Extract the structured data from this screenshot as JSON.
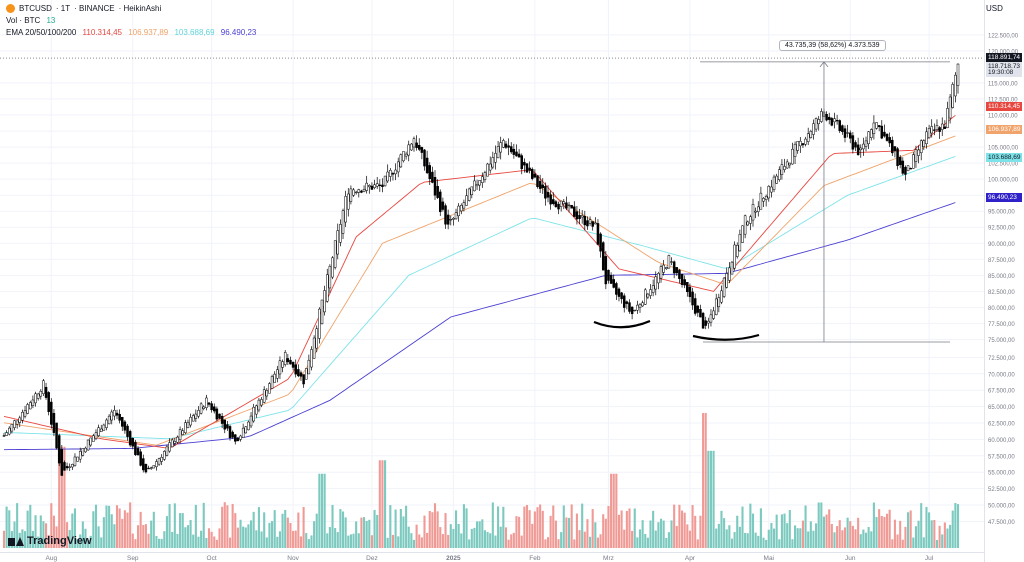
{
  "header": {
    "symbol": "BTCUSD",
    "timeframe": "1T",
    "exchange": "BINANCE",
    "chart_style": "HeikinAshi",
    "volume_label": "Vol · BTC",
    "volume_value": "13",
    "ema_label": "EMA 20/50/100/200",
    "ema_values": [
      "110.314,45",
      "106.937,89",
      "103.688,69",
      "96.490,23"
    ]
  },
  "currency": "USD",
  "colors": {
    "up": "#000000",
    "down": "#000000",
    "vol_up": "#7cc9bf",
    "vol_down": "#f09a96",
    "ema20": "#e8473f",
    "ema50": "#f0a36a",
    "ema100": "#7de3e9",
    "ema200": "#4b3fd1",
    "grid": "#f0f3fa"
  },
  "measurement": {
    "label": "43.735,39 (58,62%) 4.373.539",
    "from_price": 74600,
    "to_price": 118300,
    "at_date": "2025-05-22"
  },
  "price_tags": {
    "last": "118.891,74",
    "high": "118.718,73",
    "countdown": "19:30:08",
    "ema20": "110.314,45",
    "ema50": "106.937,89",
    "ema100": "103.688,69",
    "ema200": "96.490,23"
  },
  "branding": "TradingView",
  "chart_data": {
    "type": "candlestick",
    "title": "BTCUSD · 1T · BINANCE · HeikinAshi",
    "y_axis_ticks": [
      "122.500,00",
      "120.000,00",
      "115.000,00",
      "112.500,00",
      "110.000,00",
      "107.500,00",
      "105.000,00",
      "102.500,00",
      "100.000,00",
      "97.500,00",
      "95.000,00",
      "92.500,00",
      "90.000,00",
      "87.500,00",
      "85.000,00",
      "82.500,00",
      "80.000,00",
      "77.500,00",
      "75.000,00",
      "72.500,00",
      "70.000,00",
      "67.500,00",
      "65.000,00",
      "62.500,00",
      "60.000,00",
      "57.500,00",
      "55.000,00",
      "52.500,00",
      "50.000,00",
      "47.500,00"
    ],
    "x_axis_ticks": [
      "Aug",
      "Sep",
      "Oct",
      "Nov",
      "Dez",
      "2025",
      "Feb",
      "Mrz",
      "Apr",
      "Mai",
      "Jun",
      "Jul"
    ],
    "x_range": [
      "2024-07-14",
      "2025-07-12"
    ],
    "ylim": [
      45000,
      125000
    ],
    "close_keypoints": [
      [
        "2024-07-14",
        60000
      ],
      [
        "2024-07-29",
        68000
      ],
      [
        "2024-08-05",
        54000
      ],
      [
        "2024-08-25",
        64000
      ],
      [
        "2024-09-06",
        54000
      ],
      [
        "2024-09-29",
        65500
      ],
      [
        "2024-10-10",
        59000
      ],
      [
        "2024-10-29",
        72500
      ],
      [
        "2024-11-05",
        68500
      ],
      [
        "2024-11-22",
        98500
      ],
      [
        "2024-12-05",
        99000
      ],
      [
        "2024-12-17",
        106500
      ],
      [
        "2024-12-30",
        92500
      ],
      [
        "2025-01-20",
        106000
      ],
      [
        "2025-02-05",
        97500
      ],
      [
        "2025-02-24",
        92500
      ],
      [
        "2025-02-28",
        84000
      ],
      [
        "2025-03-10",
        79000
      ],
      [
        "2025-03-24",
        87500
      ],
      [
        "2025-04-07",
        76500
      ],
      [
        "2025-04-22",
        93500
      ],
      [
        "2025-05-10",
        104000
      ],
      [
        "2025-05-22",
        110500
      ],
      [
        "2025-06-05",
        104000
      ],
      [
        "2025-06-10",
        109500
      ],
      [
        "2025-06-22",
        100500
      ],
      [
        "2025-06-30",
        107000
      ],
      [
        "2025-07-07",
        108500
      ],
      [
        "2025-07-12",
        118000
      ]
    ],
    "ema200_keypoints": [
      [
        "2024-07-14",
        57800
      ],
      [
        "2024-09-01",
        58000
      ],
      [
        "2024-10-15",
        59800
      ],
      [
        "2024-11-15",
        65500
      ],
      [
        "2024-12-31",
        78500
      ],
      [
        "2025-02-28",
        85000
      ],
      [
        "2025-04-15",
        85300
      ],
      [
        "2025-05-31",
        90500
      ],
      [
        "2025-07-12",
        96500
      ]
    ],
    "ema100_keypoints": [
      [
        "2024-07-14",
        60500
      ],
      [
        "2024-09-15",
        59500
      ],
      [
        "2024-10-31",
        64000
      ],
      [
        "2024-12-15",
        85000
      ],
      [
        "2025-01-31",
        94000
      ],
      [
        "2025-03-15",
        89500
      ],
      [
        "2025-04-15",
        86000
      ],
      [
        "2025-05-31",
        97500
      ],
      [
        "2025-07-12",
        103700
      ]
    ],
    "ema50_keypoints": [
      [
        "2024-07-14",
        62000
      ],
      [
        "2024-09-10",
        58500
      ],
      [
        "2024-10-31",
        66500
      ],
      [
        "2024-12-05",
        90000
      ],
      [
        "2025-01-31",
        99500
      ],
      [
        "2025-03-20",
        87000
      ],
      [
        "2025-04-15",
        83500
      ],
      [
        "2025-05-22",
        99000
      ],
      [
        "2025-07-12",
        106900
      ]
    ],
    "ema20_keypoints": [
      [
        "2024-07-14",
        63000
      ],
      [
        "2024-08-20",
        59500
      ],
      [
        "2024-09-15",
        58000
      ],
      [
        "2024-10-31",
        69000
      ],
      [
        "2024-11-25",
        91000
      ],
      [
        "2024-12-20",
        99500
      ],
      [
        "2025-01-31",
        101500
      ],
      [
        "2025-03-05",
        86000
      ],
      [
        "2025-04-10",
        82500
      ],
      [
        "2025-05-25",
        104000
      ],
      [
        "2025-06-25",
        104500
      ],
      [
        "2025-07-12",
        110300
      ]
    ],
    "volume_spikes": [
      [
        "2024-08-05",
        75
      ],
      [
        "2025-04-07",
        100
      ],
      [
        "2025-04-09",
        72
      ],
      [
        "2024-11-12",
        55
      ],
      [
        "2024-12-05",
        65
      ],
      [
        "2025-03-03",
        55
      ]
    ],
    "annotations": [
      "double bottom arcs near 77.500 and 75.000",
      "resistance line near 118.900"
    ]
  }
}
